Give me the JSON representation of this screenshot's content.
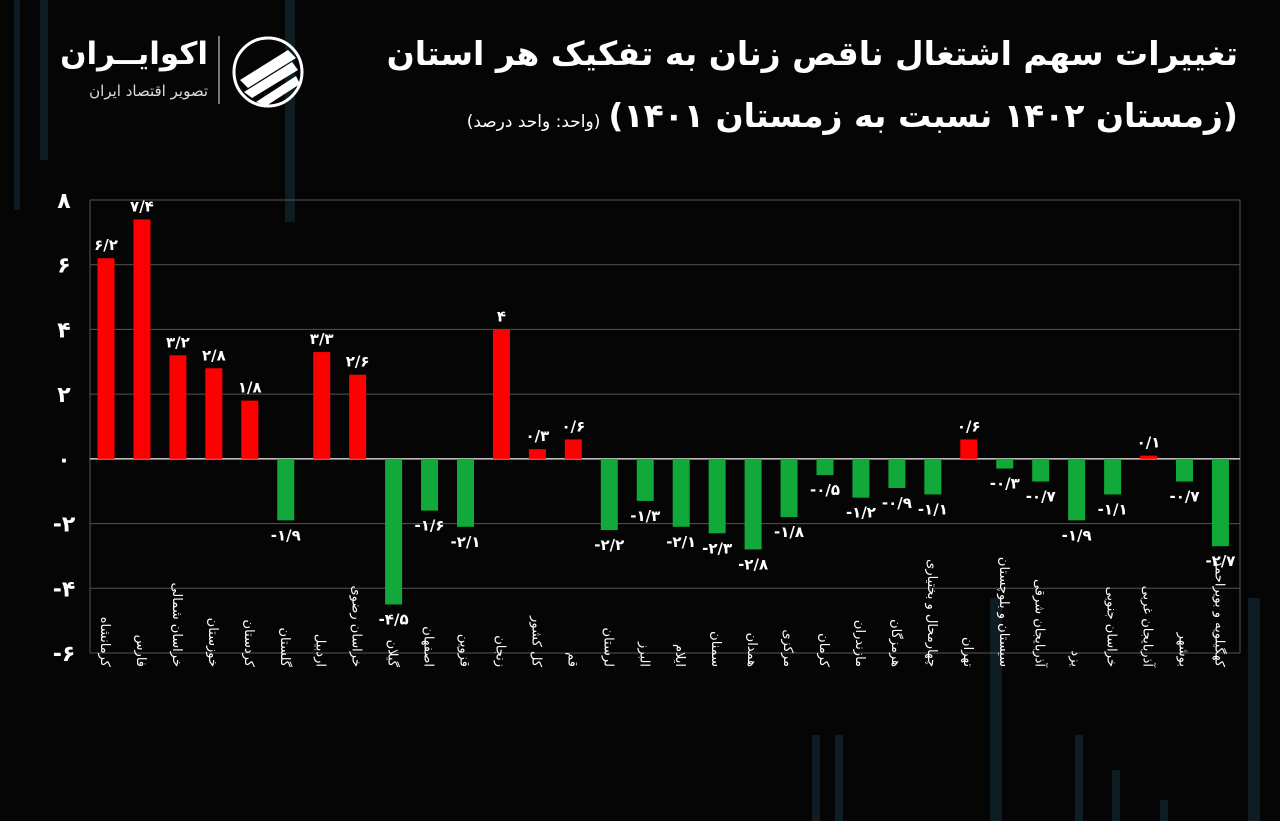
{
  "header": {
    "title": "تغییرات سهم اشتغال ناقص زنان به تفکیک هر استان",
    "subtitle": "(زمستان ۱۴۰۲ نسبت به زمستان ۱۴۰۱)",
    "unit": "(واحد: واحد درصد)"
  },
  "logo": {
    "brand": "اکوایــران",
    "tagline": "تصویر اقتصاد ایران"
  },
  "colors": {
    "positive": "#ff0000",
    "negative": "#11a93a",
    "background": "#050505",
    "grid": "#555555"
  },
  "chart_data": {
    "type": "bar",
    "title": "تغییرات سهم اشتغال ناقص زنان به تفکیک هر استان",
    "ylim": [
      -6,
      8
    ],
    "yticks": [
      -6,
      -4,
      -2,
      0,
      2,
      4,
      6,
      8
    ],
    "ytick_labels": [
      "-۶",
      "-۴",
      "-۲",
      "۰",
      "۲",
      "۴",
      "۶",
      "۸"
    ],
    "grid": true,
    "categories": [
      "کرمانشاه",
      "فارس",
      "خراسان شمالی",
      "خوزستان",
      "کردستان",
      "گلستان",
      "اردبیل",
      "خراسان رضوی",
      "گیلان",
      "اصفهان",
      "قزوین",
      "زنجان",
      "کل کشور",
      "قم",
      "لرستان",
      "البرز",
      "ایلام",
      "سمنان",
      "همدان",
      "مرکزی",
      "کرمان",
      "مازندران",
      "هرمزگان",
      "چهارمحال و بختیاری",
      "تهران",
      "سیستان و بلوچستان",
      "آذربایجان شرقی",
      "یزد",
      "خراسان جنوبی",
      "آذربایجان غربی",
      "بوشهر",
      "کهگیلویه و بویراحمد"
    ],
    "values": [
      6.2,
      7.4,
      3.2,
      2.8,
      1.8,
      -1.9,
      3.3,
      2.6,
      -4.5,
      -1.6,
      -2.1,
      4,
      0.3,
      0.6,
      -2.2,
      -1.3,
      -2.1,
      -2.3,
      -2.8,
      -1.8,
      -0.5,
      -1.2,
      -0.9,
      -1.1,
      0.6,
      -0.3,
      -0.7,
      -1.9,
      -1.1,
      0.1,
      -0.7,
      -2.7
    ],
    "labels": [
      "۶/۲",
      "۷/۴",
      "۳/۲",
      "۲/۸",
      "۱/۸",
      "-۱/۹",
      "۳/۳",
      "۲/۶",
      "-۴/۵",
      "-۱/۶",
      "-۲/۱",
      "۴",
      "۰/۳",
      "۰/۶",
      "-۲/۲",
      "-۱/۳",
      "-۲/۱",
      "-۲/۳",
      "-۲/۸",
      "-۱/۸",
      "-۰/۵",
      "-۱/۲",
      "-۰/۹",
      "-۱/۱",
      "۰/۶",
      "-۰/۳",
      "-۰/۷",
      "-۱/۹",
      "-۱/۱",
      "۰/۱",
      "-۰/۷",
      "-۲/۷"
    ]
  }
}
